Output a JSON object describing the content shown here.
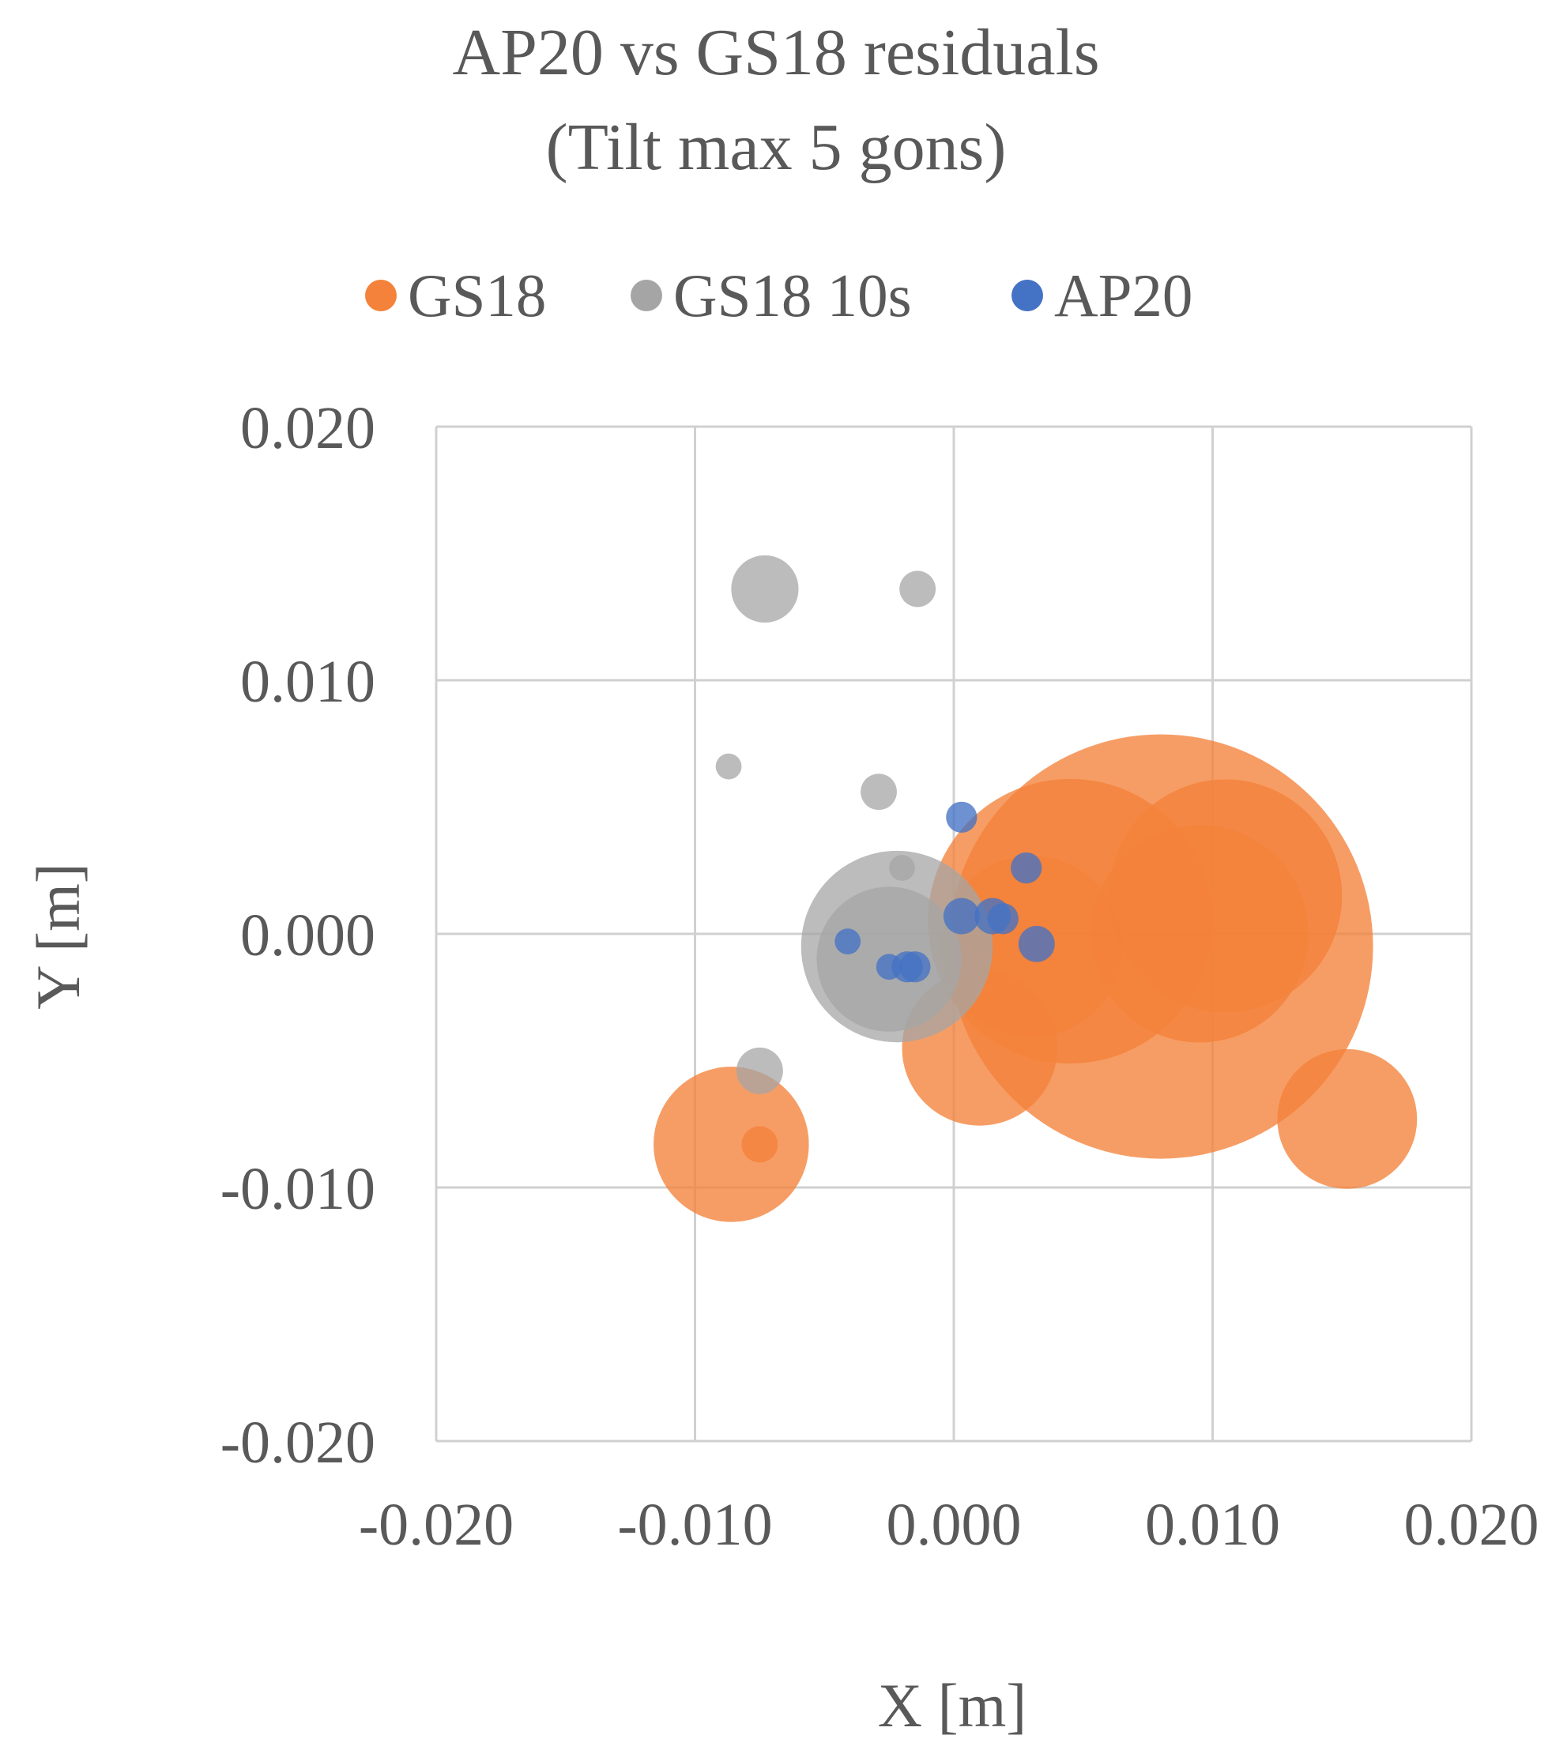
{
  "chart_data": {
    "type": "bubble",
    "title_lines": [
      "AP20 vs GS18 residuals",
      "(Tilt max 5 gons)"
    ],
    "xlabel": "X [m]",
    "ylabel": "Y [m]",
    "xlim": [
      -0.02,
      0.02
    ],
    "ylim": [
      -0.02,
      0.02
    ],
    "x_ticks": [
      "-0.020",
      "-0.010",
      "0.000",
      "0.010",
      "0.020"
    ],
    "y_ticks": [
      "0.020",
      "0.010",
      "0.000",
      "-0.010",
      "-0.020"
    ],
    "grid": true,
    "legend_position": "top",
    "series": [
      {
        "name": "GS18",
        "color": "#f4823a",
        "opacity": 0.78,
        "points": [
          {
            "x": 0.008,
            "y": -0.0005,
            "size": 0.0082
          },
          {
            "x": 0.0045,
            "y": 0.0005,
            "size": 0.0055
          },
          {
            "x": 0.0105,
            "y": 0.0015,
            "size": 0.0045
          },
          {
            "x": 0.0095,
            "y": 0.0,
            "size": 0.0042
          },
          {
            "x": 0.003,
            "y": -0.0005,
            "size": 0.0035
          },
          {
            "x": 0.001,
            "y": -0.0045,
            "size": 0.003
          },
          {
            "x": 0.0152,
            "y": -0.0073,
            "size": 0.0027
          },
          {
            "x": -0.0086,
            "y": -0.0083,
            "size": 0.003
          },
          {
            "x": -0.0075,
            "y": -0.0083,
            "size": 0.0007
          }
        ]
      },
      {
        "name": "GS18 10s",
        "color": "#a5a5a5",
        "opacity": 0.75,
        "points": [
          {
            "x": -0.0073,
            "y": 0.0136,
            "size": 0.0013
          },
          {
            "x": -0.0014,
            "y": 0.0136,
            "size": 0.0007
          },
          {
            "x": -0.0087,
            "y": 0.0066,
            "size": 0.0005
          },
          {
            "x": -0.0029,
            "y": 0.0056,
            "size": 0.0007
          },
          {
            "x": -0.0022,
            "y": -0.0005,
            "size": 0.0037
          },
          {
            "x": -0.0025,
            "y": -0.001,
            "size": 0.0028
          },
          {
            "x": -0.0075,
            "y": -0.0054,
            "size": 0.0009
          },
          {
            "x": -0.002,
            "y": 0.0026,
            "size": 0.0005
          }
        ]
      },
      {
        "name": "AP20",
        "color": "#4472c4",
        "opacity": 0.78,
        "points": [
          {
            "x": 0.0003,
            "y": 0.0046,
            "size": 0.0006
          },
          {
            "x": 0.0028,
            "y": 0.0026,
            "size": 0.0006
          },
          {
            "x": 0.0003,
            "y": 0.0007,
            "size": 0.0007
          },
          {
            "x": 0.0015,
            "y": 0.0007,
            "size": 0.0007
          },
          {
            "x": 0.0019,
            "y": 0.0006,
            "size": 0.0006
          },
          {
            "x": 0.0032,
            "y": -0.0004,
            "size": 0.0007
          },
          {
            "x": -0.0041,
            "y": -0.0003,
            "size": 0.0005
          },
          {
            "x": -0.0025,
            "y": -0.0013,
            "size": 0.0005
          },
          {
            "x": -0.0018,
            "y": -0.0013,
            "size": 0.0006
          },
          {
            "x": -0.0015,
            "y": -0.0013,
            "size": 0.0006
          }
        ]
      }
    ]
  }
}
